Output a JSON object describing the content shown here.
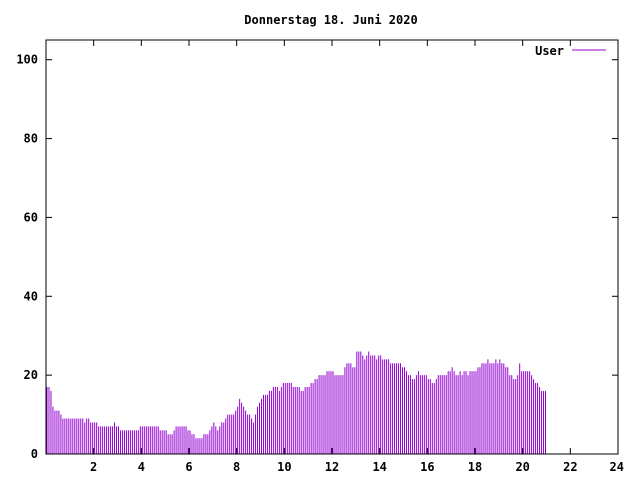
{
  "chart_data": {
    "type": "bar",
    "title": "Donnerstag 18. Juni 2020",
    "xlabel": "",
    "ylabel": "",
    "xlim": [
      0,
      24
    ],
    "ylim": [
      0,
      105
    ],
    "x_ticks": [
      2,
      4,
      6,
      8,
      10,
      12,
      14,
      16,
      18,
      20,
      22,
      24
    ],
    "x_tick_labels": [
      "2",
      "4",
      "6",
      "8",
      "10",
      "12",
      "14",
      "16",
      "18",
      "20",
      "22",
      "24"
    ],
    "y_ticks": [
      0,
      20,
      40,
      60,
      80,
      100
    ],
    "y_tick_labels": [
      "0",
      "20",
      "40",
      "60",
      "80",
      "100"
    ],
    "grid": false,
    "legend_position": "top-right",
    "colors": {
      "series": "#9400d3",
      "axes": "#000000",
      "background": "#ffffff"
    },
    "x_step_minutes": 5,
    "series": [
      {
        "name": "User",
        "values": [
          17,
          17,
          16,
          12,
          11,
          11,
          11,
          10,
          9,
          9,
          9,
          9,
          9,
          9,
          9,
          9,
          9,
          9,
          9,
          8,
          9,
          9,
          8,
          8,
          8,
          8,
          7,
          7,
          7,
          7,
          7,
          7,
          7,
          7,
          8,
          7,
          7,
          6,
          6,
          6,
          6,
          6,
          6,
          6,
          6,
          6,
          6,
          7,
          7,
          7,
          7,
          7,
          7,
          7,
          7,
          7,
          7,
          6,
          6,
          6,
          6,
          5,
          5,
          5,
          6,
          7,
          7,
          7,
          7,
          7,
          7,
          6,
          6,
          5,
          5,
          4,
          4,
          4,
          4,
          5,
          5,
          5,
          6,
          7,
          8,
          7,
          6,
          7,
          8,
          8,
          9,
          10,
          10,
          10,
          10,
          11,
          12,
          14,
          13,
          12,
          11,
          10,
          10,
          9,
          8,
          10,
          12,
          13,
          14,
          15,
          15,
          15,
          16,
          16,
          17,
          17,
          17,
          16,
          17,
          18,
          18,
          18,
          18,
          18,
          17,
          17,
          17,
          17,
          16,
          16,
          17,
          17,
          17,
          18,
          18,
          19,
          19,
          20,
          20,
          20,
          20,
          21,
          21,
          21,
          21,
          20,
          20,
          20,
          20,
          20,
          22,
          23,
          23,
          23,
          22,
          22,
          26,
          26,
          26,
          25,
          24,
          25,
          26,
          25,
          25,
          25,
          24,
          25,
          25,
          24,
          24,
          24,
          24,
          23,
          23,
          23,
          23,
          23,
          23,
          22,
          22,
          21,
          20,
          20,
          19,
          19,
          20,
          21,
          20,
          20,
          20,
          20,
          19,
          19,
          18,
          18,
          19,
          20,
          20,
          20,
          20,
          20,
          21,
          21,
          22,
          21,
          20,
          20,
          21,
          20,
          21,
          21,
          20,
          21,
          21,
          21,
          21,
          22,
          22,
          23,
          23,
          23,
          24,
          23,
          23,
          23,
          24,
          23,
          24,
          23,
          23,
          22,
          22,
          20,
          20,
          19,
          19,
          20,
          23,
          21,
          21,
          21,
          21,
          21,
          20,
          19,
          18,
          18,
          17,
          16,
          16,
          16
        ]
      }
    ]
  }
}
